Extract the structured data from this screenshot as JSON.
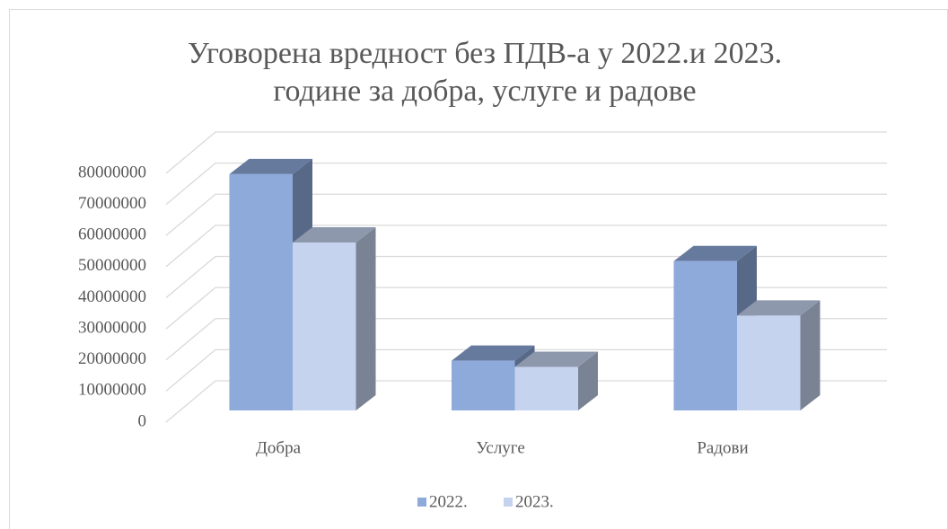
{
  "chart_data": {
    "type": "bar3d",
    "title": [
      "Уговорена вредност без ПДВ-а у 2022.и 2023.",
      "године за добра, услуге и радове"
    ],
    "categories": [
      "Добра",
      "Услуге",
      "Радови"
    ],
    "series": [
      {
        "name": "2022.",
        "color": "#8eaadb",
        "values": [
          76000000,
          16000000,
          48000000
        ]
      },
      {
        "name": "2023.",
        "color": "#c5d3ef",
        "values": [
          54000000,
          14000000,
          30500000
        ]
      }
    ],
    "ylim": [
      0,
      80000000
    ],
    "yticks": [
      0,
      10000000,
      20000000,
      30000000,
      40000000,
      50000000,
      60000000,
      70000000,
      80000000
    ],
    "grid": true,
    "legend": "bottom"
  }
}
